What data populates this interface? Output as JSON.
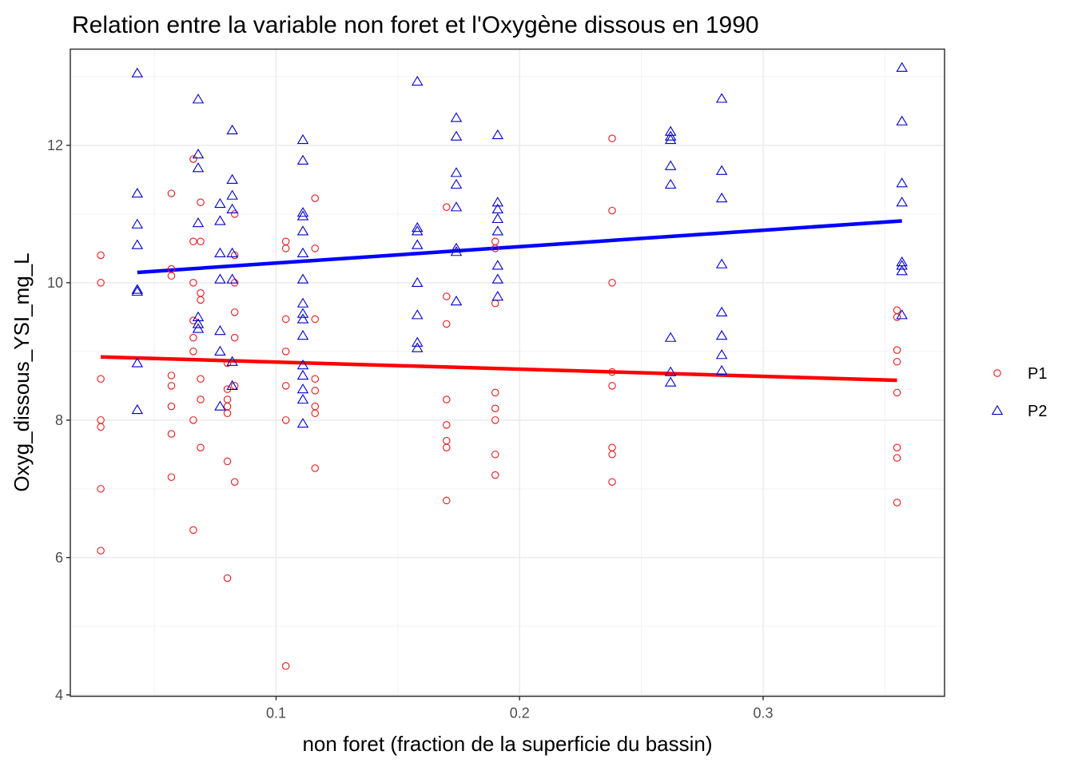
{
  "chart_data": {
    "type": "scatter",
    "title": "Relation entre la variable non foret et l'Oxygène dissous en 1990",
    "xlabel": "non foret (fraction de la superficie du bassin)",
    "ylabel": "Oxyg_dissous_YSI_mg_L",
    "xlim": [
      0.0155,
      0.3745
    ],
    "ylim": [
      3.98,
      13.4
    ],
    "x_ticks": [
      0.1,
      0.2,
      0.3
    ],
    "x_tick_labels": [
      "0.1",
      "0.2",
      "0.3"
    ],
    "y_ticks": [
      4,
      6,
      8,
      10,
      12
    ],
    "y_tick_labels": [
      "4",
      "6",
      "8",
      "10",
      "12"
    ],
    "grid": true,
    "legend_position": "right",
    "series": [
      {
        "name": "P1",
        "color": "#e41a1c",
        "marker": "circle",
        "points": [
          [
            0.028,
            10.4
          ],
          [
            0.028,
            10.0
          ],
          [
            0.028,
            8.6
          ],
          [
            0.028,
            8.0
          ],
          [
            0.028,
            7.9
          ],
          [
            0.028,
            7.0
          ],
          [
            0.028,
            6.1
          ],
          [
            0.057,
            11.3
          ],
          [
            0.057,
            10.2
          ],
          [
            0.057,
            10.1
          ],
          [
            0.057,
            8.65
          ],
          [
            0.057,
            8.5
          ],
          [
            0.057,
            8.2
          ],
          [
            0.057,
            7.8
          ],
          [
            0.057,
            7.17
          ],
          [
            0.066,
            11.8
          ],
          [
            0.066,
            10.6
          ],
          [
            0.066,
            10.0
          ],
          [
            0.066,
            9.45
          ],
          [
            0.066,
            9.2
          ],
          [
            0.066,
            9.0
          ],
          [
            0.066,
            8.0
          ],
          [
            0.066,
            6.4
          ],
          [
            0.069,
            11.17
          ],
          [
            0.069,
            10.6
          ],
          [
            0.069,
            9.85
          ],
          [
            0.069,
            9.75
          ],
          [
            0.069,
            8.6
          ],
          [
            0.069,
            8.3
          ],
          [
            0.069,
            7.6
          ],
          [
            0.08,
            8.83
          ],
          [
            0.08,
            8.45
          ],
          [
            0.08,
            8.3
          ],
          [
            0.08,
            8.2
          ],
          [
            0.08,
            8.1
          ],
          [
            0.08,
            7.4
          ],
          [
            0.08,
            5.7
          ],
          [
            0.083,
            11.0
          ],
          [
            0.083,
            10.4
          ],
          [
            0.083,
            10.0
          ],
          [
            0.083,
            9.57
          ],
          [
            0.083,
            9.2
          ],
          [
            0.083,
            8.5
          ],
          [
            0.083,
            7.1
          ],
          [
            0.104,
            10.6
          ],
          [
            0.104,
            10.5
          ],
          [
            0.104,
            9.47
          ],
          [
            0.104,
            9.0
          ],
          [
            0.104,
            8.5
          ],
          [
            0.104,
            8.0
          ],
          [
            0.104,
            4.42
          ],
          [
            0.116,
            11.23
          ],
          [
            0.116,
            10.5
          ],
          [
            0.116,
            9.47
          ],
          [
            0.116,
            8.6
          ],
          [
            0.116,
            8.43
          ],
          [
            0.116,
            8.2
          ],
          [
            0.116,
            8.1
          ],
          [
            0.116,
            7.3
          ],
          [
            0.17,
            11.1
          ],
          [
            0.17,
            9.8
          ],
          [
            0.17,
            9.4
          ],
          [
            0.17,
            8.3
          ],
          [
            0.17,
            7.93
          ],
          [
            0.17,
            7.7
          ],
          [
            0.17,
            7.6
          ],
          [
            0.17,
            6.83
          ],
          [
            0.19,
            10.6
          ],
          [
            0.19,
            10.5
          ],
          [
            0.19,
            9.7
          ],
          [
            0.19,
            8.4
          ],
          [
            0.19,
            8.17
          ],
          [
            0.19,
            8.0
          ],
          [
            0.19,
            7.5
          ],
          [
            0.19,
            7.2
          ],
          [
            0.238,
            12.1
          ],
          [
            0.238,
            11.05
          ],
          [
            0.238,
            10.0
          ],
          [
            0.238,
            8.7
          ],
          [
            0.238,
            8.5
          ],
          [
            0.238,
            7.6
          ],
          [
            0.238,
            7.5
          ],
          [
            0.238,
            7.1
          ],
          [
            0.355,
            9.6
          ],
          [
            0.355,
            9.5
          ],
          [
            0.355,
            9.02
          ],
          [
            0.355,
            8.85
          ],
          [
            0.355,
            8.4
          ],
          [
            0.355,
            7.6
          ],
          [
            0.355,
            7.45
          ],
          [
            0.355,
            6.8
          ]
        ]
      },
      {
        "name": "P2",
        "color": "#0000cc",
        "marker": "triangle",
        "points": [
          [
            0.043,
            13.05
          ],
          [
            0.043,
            11.3
          ],
          [
            0.043,
            10.85
          ],
          [
            0.043,
            10.55
          ],
          [
            0.043,
            9.9
          ],
          [
            0.043,
            9.87
          ],
          [
            0.043,
            8.83
          ],
          [
            0.043,
            8.15
          ],
          [
            0.068,
            12.67
          ],
          [
            0.068,
            11.87
          ],
          [
            0.068,
            11.67
          ],
          [
            0.068,
            10.87
          ],
          [
            0.068,
            9.5
          ],
          [
            0.068,
            9.4
          ],
          [
            0.068,
            9.33
          ],
          [
            0.077,
            11.15
          ],
          [
            0.077,
            10.9
          ],
          [
            0.077,
            10.43
          ],
          [
            0.077,
            10.05
          ],
          [
            0.077,
            9.3
          ],
          [
            0.077,
            9.0
          ],
          [
            0.077,
            8.2
          ],
          [
            0.082,
            12.22
          ],
          [
            0.082,
            11.5
          ],
          [
            0.082,
            11.27
          ],
          [
            0.082,
            11.07
          ],
          [
            0.082,
            10.43
          ],
          [
            0.082,
            10.05
          ],
          [
            0.082,
            8.85
          ],
          [
            0.082,
            8.5
          ],
          [
            0.111,
            12.08
          ],
          [
            0.111,
            11.78
          ],
          [
            0.111,
            11.02
          ],
          [
            0.111,
            10.97
          ],
          [
            0.111,
            10.75
          ],
          [
            0.111,
            10.43
          ],
          [
            0.111,
            10.05
          ],
          [
            0.111,
            9.7
          ],
          [
            0.111,
            9.55
          ],
          [
            0.111,
            9.47
          ],
          [
            0.111,
            9.23
          ],
          [
            0.111,
            8.8
          ],
          [
            0.111,
            8.65
          ],
          [
            0.111,
            8.45
          ],
          [
            0.111,
            8.3
          ],
          [
            0.111,
            7.95
          ],
          [
            0.158,
            12.93
          ],
          [
            0.158,
            10.8
          ],
          [
            0.158,
            10.75
          ],
          [
            0.158,
            10.55
          ],
          [
            0.158,
            10.0
          ],
          [
            0.158,
            9.53
          ],
          [
            0.158,
            9.13
          ],
          [
            0.158,
            9.05
          ],
          [
            0.174,
            12.4
          ],
          [
            0.174,
            12.13
          ],
          [
            0.174,
            11.6
          ],
          [
            0.174,
            11.43
          ],
          [
            0.174,
            11.1
          ],
          [
            0.174,
            10.5
          ],
          [
            0.174,
            10.45
          ],
          [
            0.174,
            9.73
          ],
          [
            0.191,
            12.15
          ],
          [
            0.191,
            11.17
          ],
          [
            0.191,
            11.07
          ],
          [
            0.191,
            10.93
          ],
          [
            0.191,
            10.75
          ],
          [
            0.191,
            10.25
          ],
          [
            0.191,
            10.05
          ],
          [
            0.191,
            9.8
          ],
          [
            0.262,
            12.2
          ],
          [
            0.262,
            12.13
          ],
          [
            0.262,
            12.08
          ],
          [
            0.262,
            11.7
          ],
          [
            0.262,
            11.43
          ],
          [
            0.262,
            9.2
          ],
          [
            0.262,
            8.7
          ],
          [
            0.262,
            8.55
          ],
          [
            0.283,
            12.68
          ],
          [
            0.283,
            11.63
          ],
          [
            0.283,
            11.23
          ],
          [
            0.283,
            10.27
          ],
          [
            0.283,
            9.57
          ],
          [
            0.283,
            9.23
          ],
          [
            0.283,
            8.95
          ],
          [
            0.283,
            8.72
          ],
          [
            0.357,
            13.13
          ],
          [
            0.357,
            12.35
          ],
          [
            0.357,
            11.45
          ],
          [
            0.357,
            11.17
          ],
          [
            0.357,
            10.3
          ],
          [
            0.357,
            10.25
          ],
          [
            0.357,
            10.17
          ],
          [
            0.357,
            9.53
          ]
        ]
      }
    ],
    "fit_lines": [
      {
        "name": "P1",
        "color": "#ff0000",
        "x": [
          0.028,
          0.355
        ],
        "y": [
          8.92,
          8.58
        ]
      },
      {
        "name": "P2",
        "color": "#0000ff",
        "x": [
          0.043,
          0.357
        ],
        "y": [
          10.15,
          10.9
        ]
      }
    ]
  }
}
